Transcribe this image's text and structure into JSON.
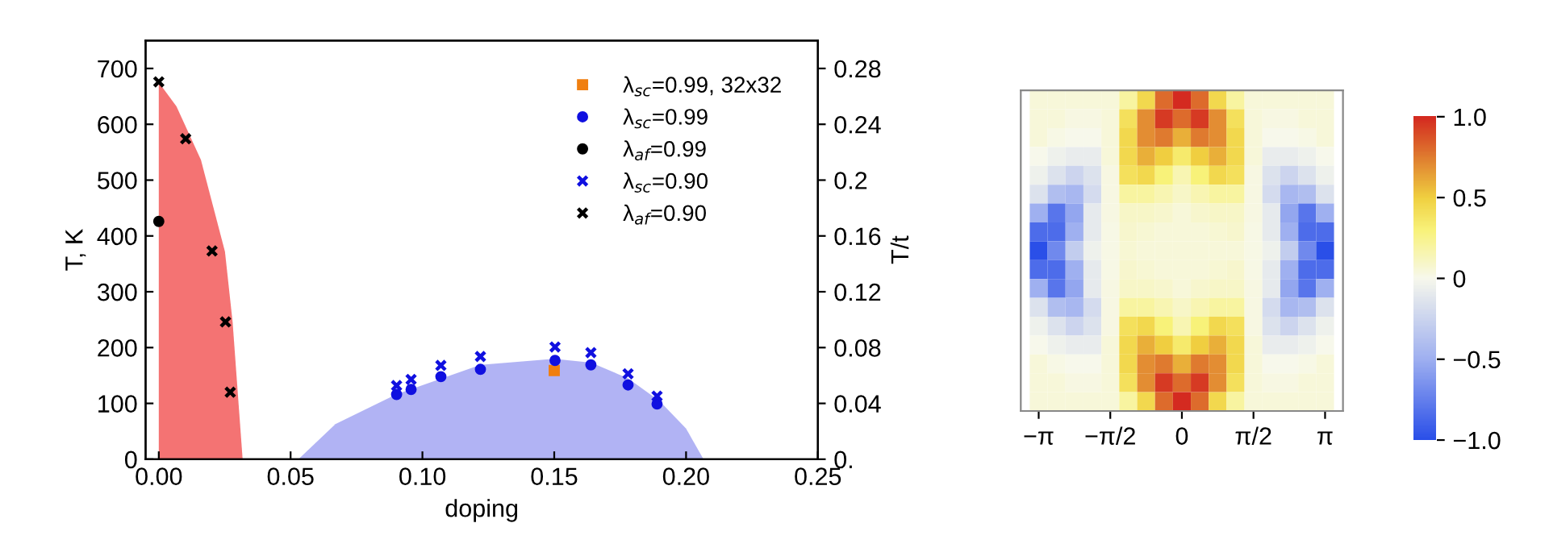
{
  "chart_data": [
    {
      "type": "scatter",
      "xlabel": "doping",
      "ylabel": "T, K",
      "y2label": "T/t",
      "xlim": [
        -0.005,
        0.25
      ],
      "xticks": [
        {
          "value": 0,
          "label": "0.00"
        },
        {
          "value": 0.05,
          "label": "0.05"
        },
        {
          "value": 0.1,
          "label": "0.10"
        },
        {
          "value": 0.15,
          "label": "0.15"
        },
        {
          "value": 0.2,
          "label": "0.20"
        },
        {
          "value": 0.25,
          "label": "0.25"
        }
      ],
      "ylim": [
        0,
        750
      ],
      "yticks": [
        0,
        100,
        200,
        300,
        400,
        500,
        600,
        700
      ],
      "y2lim": [
        0,
        0.3
      ],
      "y2ticks": [
        {
          "value": 0,
          "label": "0."
        },
        0.04,
        0.08,
        0.12,
        0.16,
        0.2,
        0.24,
        0.28
      ],
      "legend": "top right",
      "grid": false,
      "series": [
        {
          "type": "area",
          "color": "#f25a5a",
          "x": [
            0,
            0.0067,
            0.016,
            0.0251,
            0.028,
            0.0318
          ],
          "values": [
            675,
            632,
            536,
            372,
            246,
            0
          ]
        },
        {
          "type": "area",
          "color": "#a3a6f2",
          "x": [
            0.053,
            0.067,
            0.09,
            0.122,
            0.15,
            0.164,
            0.178,
            0.19,
            0.2,
            0.2066
          ],
          "values": [
            0,
            63,
            116,
            169,
            180,
            173,
            145,
            104,
            55,
            0
          ]
        },
        {
          "type": "scatter",
          "name": "λ$_{sc}$=0.99, 32x32",
          "marker": "square",
          "color": "#f07f10",
          "x": [
            0.15
          ],
          "values": [
            159
          ]
        },
        {
          "type": "scatter",
          "name": "λ$_{sc}$=0.99",
          "marker": "circle",
          "color": "#1010e0",
          "x": [
            0.0902,
            0.0957,
            0.107,
            0.122,
            0.1503,
            0.1639,
            0.178,
            0.189
          ],
          "values": [
            116,
            125,
            148,
            161,
            177,
            169,
            133,
            99
          ]
        },
        {
          "type": "scatter",
          "name": "λ$_{af}$=0.99",
          "marker": "circle",
          "color": "#000000",
          "x": [
            0.0
          ],
          "values": [
            426
          ]
        },
        {
          "type": "scatter",
          "name": "λ$_{sc}$=0.90",
          "marker": "cross",
          "color": "#1010e0",
          "x": [
            0.0902,
            0.0957,
            0.107,
            0.122,
            0.1503,
            0.1639,
            0.178,
            0.189
          ],
          "values": [
            132,
            143,
            168,
            184,
            201,
            191,
            153,
            113
          ]
        },
        {
          "type": "scatter",
          "name": "λ$_{af}$=0.90",
          "marker": "cross",
          "color": "#000000",
          "x": [
            0.0,
            0.0102,
            0.0202,
            0.0253,
            0.0271
          ],
          "values": [
            676,
            574,
            373,
            246,
            120
          ]
        }
      ]
    },
    {
      "type": "heatmap",
      "tick_labels": "x",
      "x": [
        -3.1416,
        -2.7489,
        -2.3562,
        -1.9635,
        -1.5708,
        -1.1781,
        -0.7854,
        -0.3927,
        0,
        0.3927,
        0.7854,
        1.1781,
        1.5708,
        1.9635,
        2.3562,
        2.7489,
        3.1416
      ],
      "xlim": [
        -3.5343,
        3.5343
      ],
      "xticks": [
        {
          "value": -3.1416,
          "label": "−π"
        },
        {
          "value": -1.5708,
          "label": "−π/2"
        },
        0,
        {
          "value": 1.5708,
          "label": "π/2"
        },
        {
          "value": 3.1416,
          "label": "π"
        }
      ],
      "y_categories": [
        null,
        null,
        null,
        null,
        null,
        null,
        null,
        null,
        null,
        null,
        null,
        null,
        null,
        null,
        null,
        null,
        null
      ],
      "clim": [
        -1,
        1
      ],
      "cticks": [
        {
          "value": 1,
          "label": "1.0"
        },
        0.5,
        0,
        {
          "value": -0.5,
          "label": "−0.5"
        },
        {
          "value": -1,
          "label": "−1.0"
        }
      ],
      "cells": [
        [
          0.05,
          0.05,
          0.05,
          0.05,
          0.05,
          0.2,
          0.45,
          0.8,
          1.0,
          0.8,
          0.45,
          0.2,
          0.05,
          0.05,
          0.05,
          0.05,
          0.05
        ],
        [
          0.05,
          0.05,
          0.03,
          0.03,
          0.05,
          0.4,
          0.7,
          0.95,
          0.8,
          0.95,
          0.7,
          0.4,
          0.05,
          0.03,
          0.03,
          0.05,
          0.05
        ],
        [
          0.05,
          0.02,
          0.0,
          0.0,
          0.05,
          0.45,
          0.7,
          0.75,
          0.6,
          0.75,
          0.7,
          0.45,
          0.05,
          0.0,
          0.0,
          0.02,
          0.05
        ],
        [
          0.0,
          -0.05,
          -0.08,
          -0.08,
          0.05,
          0.45,
          0.6,
          0.5,
          0.35,
          0.5,
          0.6,
          0.45,
          0.05,
          -0.08,
          -0.08,
          -0.05,
          0.0
        ],
        [
          -0.05,
          -0.15,
          -0.25,
          -0.15,
          0.03,
          0.4,
          0.45,
          0.3,
          0.15,
          0.3,
          0.45,
          0.4,
          0.03,
          -0.15,
          -0.25,
          -0.15,
          -0.05
        ],
        [
          -0.15,
          -0.4,
          -0.45,
          -0.2,
          0.03,
          0.2,
          0.2,
          0.15,
          0.1,
          0.15,
          0.2,
          0.2,
          0.03,
          -0.2,
          -0.45,
          -0.4,
          -0.15
        ],
        [
          -0.5,
          -0.8,
          -0.55,
          -0.1,
          0.03,
          0.1,
          0.1,
          0.08,
          0.05,
          0.08,
          0.1,
          0.1,
          0.03,
          -0.1,
          -0.55,
          -0.8,
          -0.5
        ],
        [
          -0.85,
          -0.85,
          -0.5,
          -0.1,
          0.02,
          0.08,
          0.07,
          0.05,
          0.05,
          0.05,
          0.07,
          0.08,
          0.02,
          -0.1,
          -0.5,
          -0.85,
          -0.85
        ],
        [
          -1.0,
          -0.7,
          -0.3,
          -0.05,
          0.02,
          0.07,
          0.05,
          0.05,
          0.05,
          0.05,
          0.05,
          0.05,
          0.02,
          -0.05,
          -0.3,
          -0.7,
          -1.0
        ],
        [
          -0.85,
          -0.85,
          -0.5,
          -0.1,
          0.02,
          0.08,
          0.07,
          0.05,
          0.05,
          0.05,
          0.07,
          0.08,
          0.02,
          -0.1,
          -0.5,
          -0.85,
          -0.85
        ],
        [
          -0.5,
          -0.8,
          -0.55,
          -0.1,
          0.03,
          0.1,
          0.1,
          0.08,
          0.05,
          0.08,
          0.1,
          0.1,
          0.03,
          -0.1,
          -0.55,
          -0.8,
          -0.5
        ],
        [
          -0.15,
          -0.4,
          -0.45,
          -0.2,
          0.03,
          0.2,
          0.2,
          0.15,
          0.1,
          0.15,
          0.2,
          0.2,
          0.03,
          -0.2,
          -0.45,
          -0.4,
          -0.15
        ],
        [
          -0.05,
          -0.15,
          -0.25,
          -0.15,
          0.03,
          0.4,
          0.45,
          0.3,
          0.15,
          0.3,
          0.45,
          0.4,
          0.03,
          -0.15,
          -0.25,
          -0.15,
          -0.05
        ],
        [
          0.0,
          -0.05,
          -0.08,
          -0.08,
          0.05,
          0.45,
          0.6,
          0.5,
          0.35,
          0.5,
          0.6,
          0.45,
          0.05,
          -0.08,
          -0.08,
          -0.05,
          0.0
        ],
        [
          0.05,
          0.02,
          0.0,
          0.0,
          0.05,
          0.45,
          0.7,
          0.75,
          0.6,
          0.75,
          0.7,
          0.45,
          0.05,
          0.0,
          0.0,
          0.02,
          0.05
        ],
        [
          0.05,
          0.05,
          0.03,
          0.03,
          0.05,
          0.4,
          0.7,
          0.95,
          0.8,
          0.95,
          0.7,
          0.4,
          0.05,
          0.03,
          0.03,
          0.05,
          0.05
        ],
        [
          0.05,
          0.05,
          0.05,
          0.05,
          0.05,
          0.2,
          0.45,
          0.8,
          1.0,
          0.8,
          0.45,
          0.2,
          0.05,
          0.05,
          0.05,
          0.05,
          0.05
        ]
      ]
    }
  ]
}
